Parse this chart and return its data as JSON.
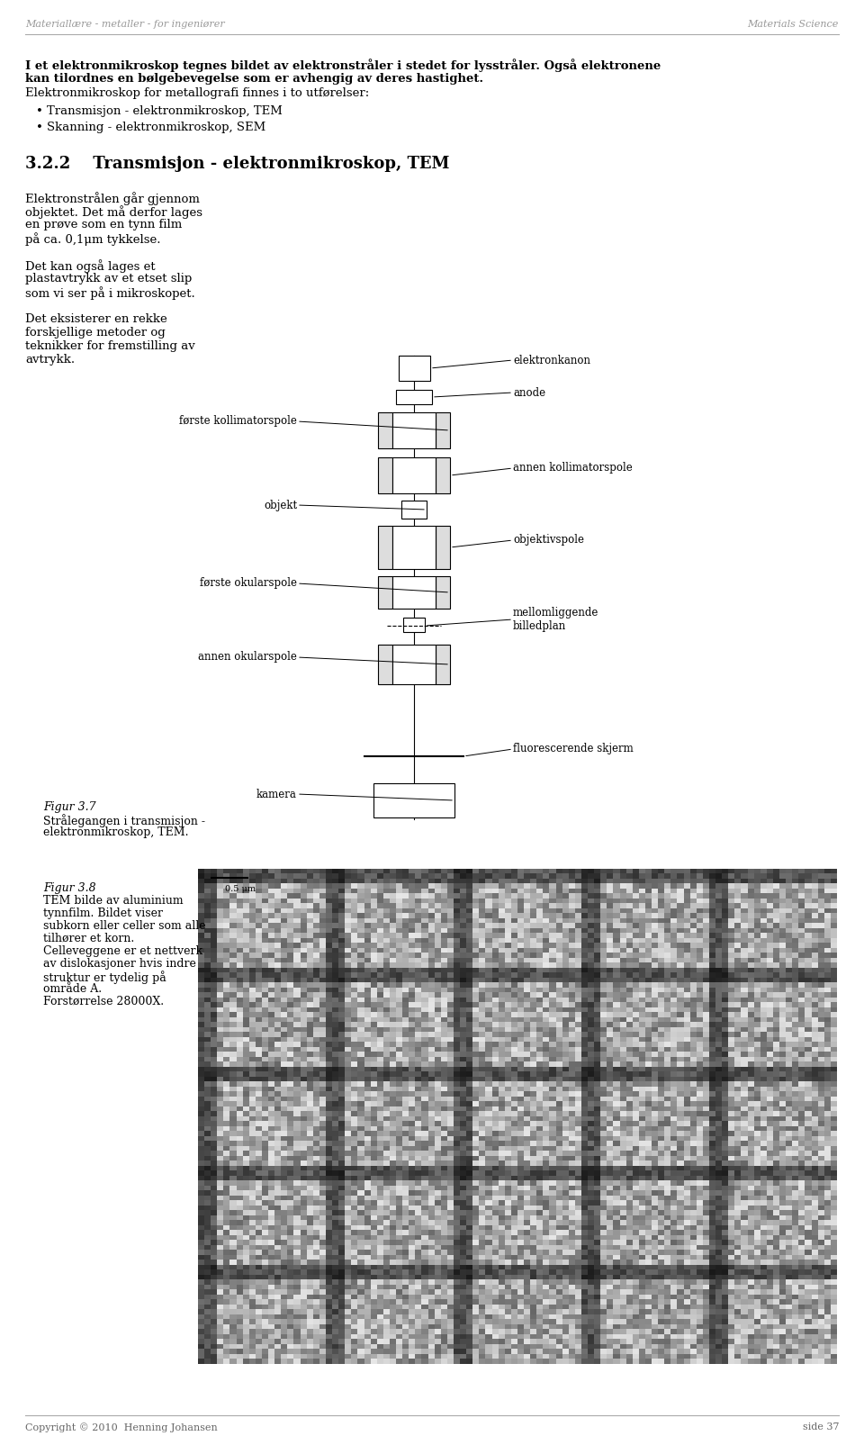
{
  "bg_color": "#ffffff",
  "header_left": "Materiallære - metaller - for ingeniører",
  "header_right": "Materials Science",
  "footer_left": "Copyright © 2010  Henning Johansen",
  "footer_right": "side 37",
  "intro_line1": "I et elektronmikroskop tegnes bildet av elektronstråler i stedet for lysstråler. Også elektronene",
  "intro_line2": "kan tilordnes en bølgebevegelse som er avhengig av deres hastighet.",
  "intro_line3": "Elektronmikroskop for metallografi finnes i to utførelser:",
  "bullet1": "Transmisjon - elektronmikroskop, TEM",
  "bullet2": "Skanning - elektronmikroskop, SEM",
  "section_title": "3.2.2    Transmisjon - elektronmikroskop, TEM",
  "left_col_lines": [
    "Elektronstrålen går gjennom",
    "objektet. Det må derfor lages",
    "en prøve som en tynn film",
    "på ca. 0,1μm tykkelse.",
    "",
    "Det kan også lages et",
    "plastavtrykk av et etset slip",
    "som vi ser på i mikroskopet.",
    "",
    "Det eksisterer en rekke",
    "forskjellige metoder og",
    "teknikker for fremstilling av",
    "avtrykk."
  ],
  "fig37_caption_line1": "Figur 3.7",
  "fig37_caption_line2": "Strålegangen i transmisjon -",
  "fig37_caption_line3": "elektronmikroskop, TEM.",
  "fig38_caption_line1": "Figur 3.8",
  "fig38_caption_line2": "TEM bilde av aluminium",
  "fig38_caption_line3": "tynnfilm. Bildet viser",
  "fig38_caption_line4": "subkorn eller celler som alle",
  "fig38_caption_line5": "tilhører et korn.",
  "fig38_caption_line6": "Celleveggene er et nettverk",
  "fig38_caption_line7": "av dislokasjoner hvis indre",
  "fig38_caption_line8": "struktur er tydelig på",
  "fig38_caption_line9": "område A.",
  "fig38_caption_line10": "Forstørrelse 28000X.",
  "diagram_labels": [
    "elektronkanon",
    "anode",
    "første kollimatorspole",
    "annen kollimatorspole",
    "objekt",
    "objektivspole",
    "første okularspole",
    "mellomliggende\nbilledplan",
    "annen okularspole",
    "fluorescerende skjerm",
    "kamera"
  ],
  "text_color": "#000000",
  "header_color": "#888888",
  "title_size": 13,
  "body_size": 9.5,
  "caption_size": 9,
  "header_size": 8,
  "footer_size": 8
}
